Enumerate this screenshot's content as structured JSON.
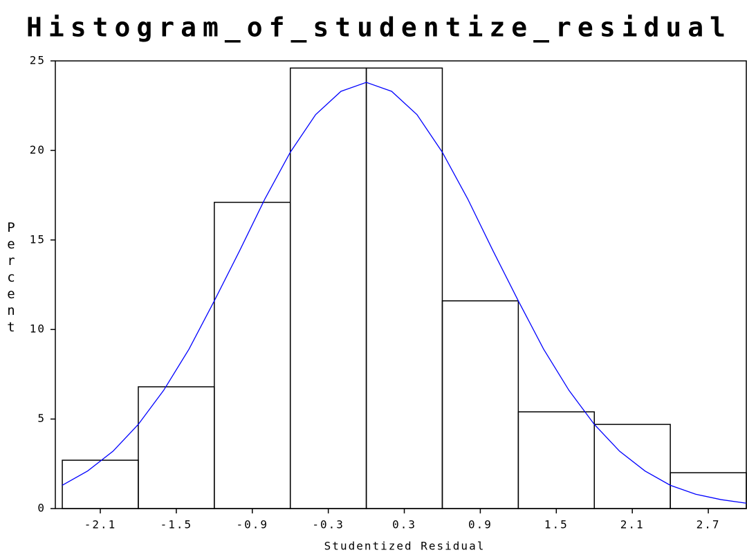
{
  "chart_data": {
    "type": "histogram",
    "title": "Histogram_of_studentize_residual",
    "x_label": "Studentized Residual",
    "y_label": "Percent",
    "bins": [
      -2.4,
      -1.8,
      -1.2,
      -0.6,
      0,
      0.6,
      1.2,
      1.8,
      2.4,
      3.0
    ],
    "values": [
      2.7,
      6.8,
      17.1,
      24.6,
      24.6,
      11.6,
      5.4,
      4.7,
      2.0
    ],
    "color": "#000000",
    "curve": {
      "color": "#0000ff",
      "x": [
        -2.4,
        -2.2,
        -2.0,
        -1.8,
        -1.6,
        -1.4,
        -1.2,
        -1.0,
        -0.8,
        -0.6,
        -0.4,
        -0.2,
        0,
        0.2,
        0.4,
        0.6,
        0.8,
        1.0,
        1.2,
        1.4,
        1.6,
        1.8,
        2.0,
        2.2,
        2.4,
        2.6,
        2.8,
        3.0
      ],
      "values": [
        1.3,
        2.1,
        3.2,
        4.7,
        6.6,
        8.9,
        11.6,
        14.4,
        17.3,
        19.9,
        22.0,
        23.3,
        23.8,
        23.3,
        22.0,
        19.9,
        17.3,
        14.4,
        11.6,
        8.9,
        6.6,
        4.7,
        3.2,
        2.1,
        1.3,
        0.8,
        0.5,
        0.3
      ]
    },
    "xlim": [
      -2.455,
      3.0
    ],
    "ylim": [
      0,
      25
    ],
    "xticks": [
      -2.1,
      -1.5,
      -0.9,
      -0.3,
      0.3,
      0.9,
      1.5,
      2.1,
      2.7
    ],
    "yticks": [
      0,
      5,
      10,
      15,
      20,
      25
    ],
    "grid": false
  }
}
